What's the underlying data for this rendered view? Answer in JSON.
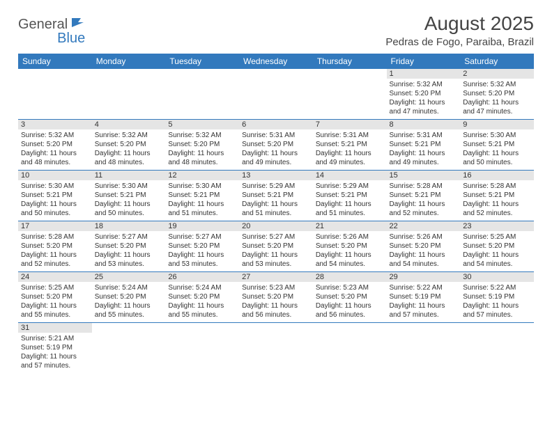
{
  "brand": {
    "part1": "General",
    "part2": "Blue"
  },
  "title": "August 2025",
  "location": "Pedras de Fogo, Paraiba, Brazil",
  "daysOfWeek": [
    "Sunday",
    "Monday",
    "Tuesday",
    "Wednesday",
    "Thursday",
    "Friday",
    "Saturday"
  ],
  "colors": {
    "headerBg": "#3279bd",
    "dayNumBg": "#e5e5e5",
    "text": "#333333"
  },
  "weeks": [
    [
      null,
      null,
      null,
      null,
      null,
      {
        "n": "1",
        "sr": "5:32 AM",
        "ss": "5:20 PM",
        "dl": "11 hours and 47 minutes."
      },
      {
        "n": "2",
        "sr": "5:32 AM",
        "ss": "5:20 PM",
        "dl": "11 hours and 47 minutes."
      }
    ],
    [
      {
        "n": "3",
        "sr": "5:32 AM",
        "ss": "5:20 PM",
        "dl": "11 hours and 48 minutes."
      },
      {
        "n": "4",
        "sr": "5:32 AM",
        "ss": "5:20 PM",
        "dl": "11 hours and 48 minutes."
      },
      {
        "n": "5",
        "sr": "5:32 AM",
        "ss": "5:20 PM",
        "dl": "11 hours and 48 minutes."
      },
      {
        "n": "6",
        "sr": "5:31 AM",
        "ss": "5:20 PM",
        "dl": "11 hours and 49 minutes."
      },
      {
        "n": "7",
        "sr": "5:31 AM",
        "ss": "5:21 PM",
        "dl": "11 hours and 49 minutes."
      },
      {
        "n": "8",
        "sr": "5:31 AM",
        "ss": "5:21 PM",
        "dl": "11 hours and 49 minutes."
      },
      {
        "n": "9",
        "sr": "5:30 AM",
        "ss": "5:21 PM",
        "dl": "11 hours and 50 minutes."
      }
    ],
    [
      {
        "n": "10",
        "sr": "5:30 AM",
        "ss": "5:21 PM",
        "dl": "11 hours and 50 minutes."
      },
      {
        "n": "11",
        "sr": "5:30 AM",
        "ss": "5:21 PM",
        "dl": "11 hours and 50 minutes."
      },
      {
        "n": "12",
        "sr": "5:30 AM",
        "ss": "5:21 PM",
        "dl": "11 hours and 51 minutes."
      },
      {
        "n": "13",
        "sr": "5:29 AM",
        "ss": "5:21 PM",
        "dl": "11 hours and 51 minutes."
      },
      {
        "n": "14",
        "sr": "5:29 AM",
        "ss": "5:21 PM",
        "dl": "11 hours and 51 minutes."
      },
      {
        "n": "15",
        "sr": "5:28 AM",
        "ss": "5:21 PM",
        "dl": "11 hours and 52 minutes."
      },
      {
        "n": "16",
        "sr": "5:28 AM",
        "ss": "5:21 PM",
        "dl": "11 hours and 52 minutes."
      }
    ],
    [
      {
        "n": "17",
        "sr": "5:28 AM",
        "ss": "5:20 PM",
        "dl": "11 hours and 52 minutes."
      },
      {
        "n": "18",
        "sr": "5:27 AM",
        "ss": "5:20 PM",
        "dl": "11 hours and 53 minutes."
      },
      {
        "n": "19",
        "sr": "5:27 AM",
        "ss": "5:20 PM",
        "dl": "11 hours and 53 minutes."
      },
      {
        "n": "20",
        "sr": "5:27 AM",
        "ss": "5:20 PM",
        "dl": "11 hours and 53 minutes."
      },
      {
        "n": "21",
        "sr": "5:26 AM",
        "ss": "5:20 PM",
        "dl": "11 hours and 54 minutes."
      },
      {
        "n": "22",
        "sr": "5:26 AM",
        "ss": "5:20 PM",
        "dl": "11 hours and 54 minutes."
      },
      {
        "n": "23",
        "sr": "5:25 AM",
        "ss": "5:20 PM",
        "dl": "11 hours and 54 minutes."
      }
    ],
    [
      {
        "n": "24",
        "sr": "5:25 AM",
        "ss": "5:20 PM",
        "dl": "11 hours and 55 minutes."
      },
      {
        "n": "25",
        "sr": "5:24 AM",
        "ss": "5:20 PM",
        "dl": "11 hours and 55 minutes."
      },
      {
        "n": "26",
        "sr": "5:24 AM",
        "ss": "5:20 PM",
        "dl": "11 hours and 55 minutes."
      },
      {
        "n": "27",
        "sr": "5:23 AM",
        "ss": "5:20 PM",
        "dl": "11 hours and 56 minutes."
      },
      {
        "n": "28",
        "sr": "5:23 AM",
        "ss": "5:20 PM",
        "dl": "11 hours and 56 minutes."
      },
      {
        "n": "29",
        "sr": "5:22 AM",
        "ss": "5:19 PM",
        "dl": "11 hours and 57 minutes."
      },
      {
        "n": "30",
        "sr": "5:22 AM",
        "ss": "5:19 PM",
        "dl": "11 hours and 57 minutes."
      }
    ],
    [
      {
        "n": "31",
        "sr": "5:21 AM",
        "ss": "5:19 PM",
        "dl": "11 hours and 57 minutes."
      },
      null,
      null,
      null,
      null,
      null,
      null
    ]
  ],
  "labels": {
    "sunrise": "Sunrise:",
    "sunset": "Sunset:",
    "daylight": "Daylight:"
  }
}
